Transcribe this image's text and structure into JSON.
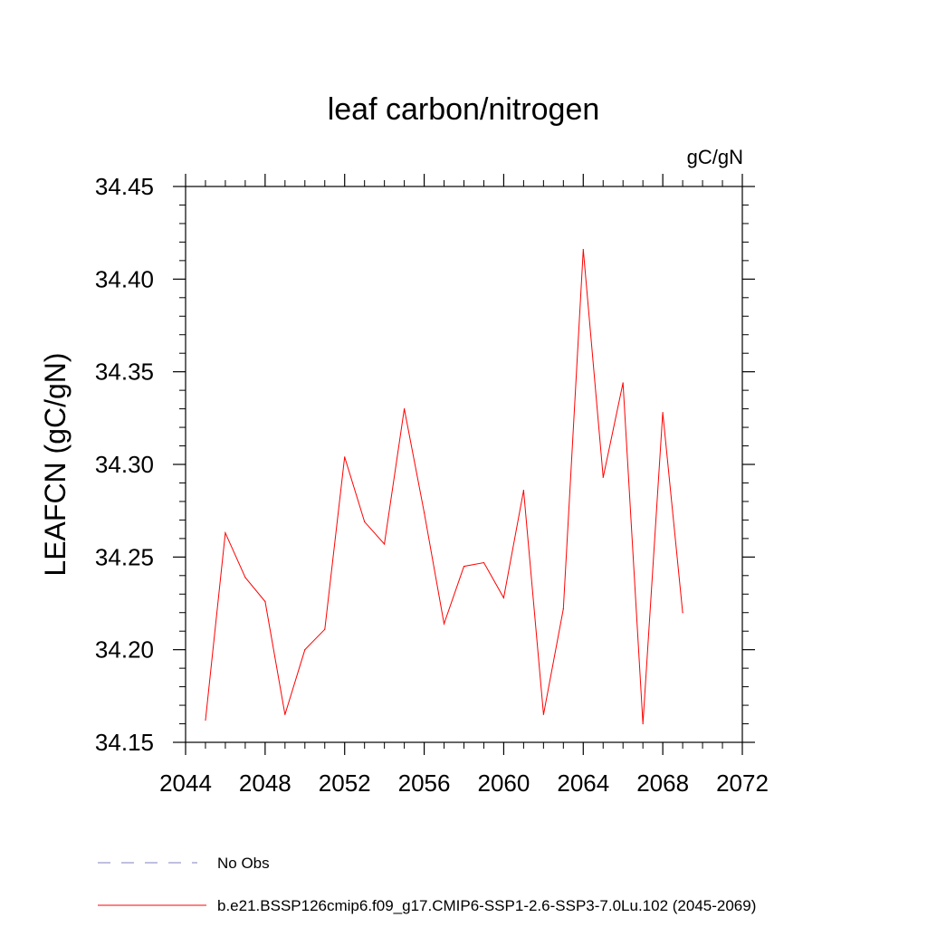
{
  "chart_data": {
    "type": "line",
    "title": "leaf carbon/nitrogen",
    "units": "gC/gN",
    "xlabel": "",
    "ylabel": "LEAFCN  (gC/gN)",
    "xlim": [
      2044,
      2072
    ],
    "ylim": [
      34.15,
      34.45
    ],
    "x_ticks": [
      2044,
      2048,
      2052,
      2056,
      2060,
      2064,
      2068,
      2072
    ],
    "y_ticks": [
      "34.15",
      "34.20",
      "34.25",
      "34.30",
      "34.35",
      "34.40",
      "34.45"
    ],
    "series": [
      {
        "name": "b.e21.BSSP126cmip6.f09_g17.CMIP6-SSP1-2.6-SSP3-7.0Lu.102 (2045-2069)",
        "color": "#ff0000",
        "x": [
          2045,
          2046,
          2047,
          2048,
          2049,
          2050,
          2051,
          2052,
          2053,
          2054,
          2055,
          2056,
          2057,
          2058,
          2059,
          2060,
          2061,
          2062,
          2063,
          2064,
          2065,
          2066,
          2067,
          2068,
          2069
        ],
        "values": [
          34.162,
          34.263,
          34.239,
          34.226,
          34.165,
          34.2,
          34.211,
          34.304,
          34.269,
          34.257,
          34.33,
          34.274,
          34.214,
          34.245,
          34.247,
          34.228,
          34.286,
          34.165,
          34.222,
          34.416,
          34.293,
          34.344,
          34.16,
          34.328,
          34.22
        ]
      }
    ],
    "legend": [
      {
        "label": "No Obs",
        "style": "dashed",
        "color": "#8080c0"
      },
      {
        "label": "b.e21.BSSP126cmip6.f09_g17.CMIP6-SSP1-2.6-SSP3-7.0Lu.102 (2045-2069)",
        "style": "solid",
        "color": "#ff0000"
      }
    ]
  }
}
